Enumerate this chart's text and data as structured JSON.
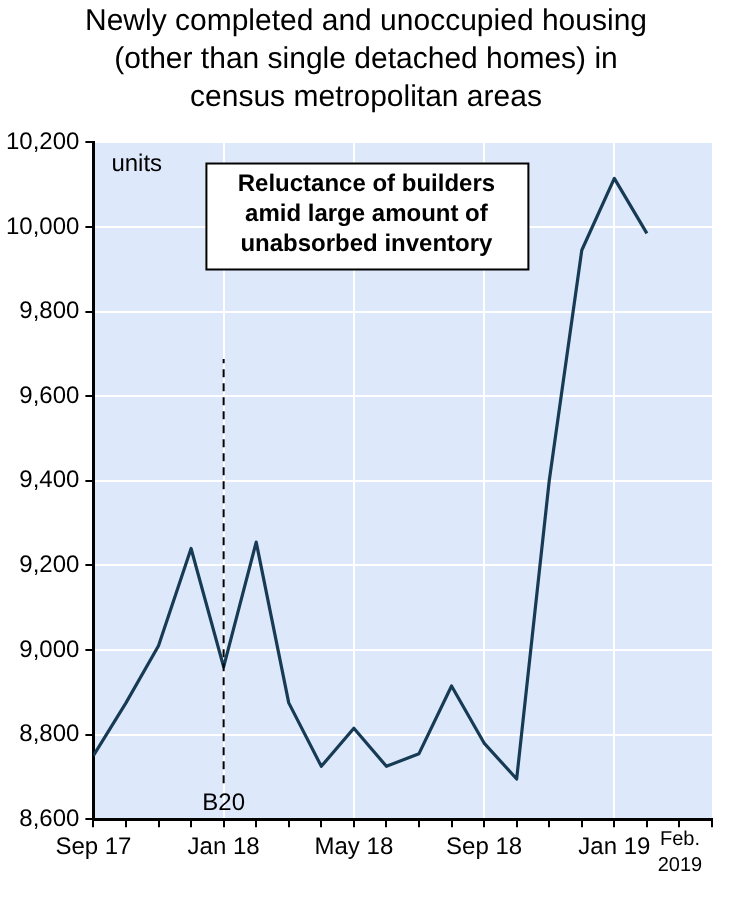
{
  "chart_data": {
    "type": "line",
    "title": "Newly completed and unoccupied housing (other than single detached homes) in census metropolitan areas",
    "x": [
      "2017-09",
      "2017-10",
      "2017-11",
      "2017-12",
      "2018-01",
      "2018-02",
      "2018-03",
      "2018-04",
      "2018-05",
      "2018-06",
      "2018-07",
      "2018-08",
      "2018-09",
      "2018-10",
      "2018-11",
      "2018-12",
      "2019-01",
      "2019-02"
    ],
    "series": [
      {
        "color": "#173a55",
        "values": [
          8750,
          8875,
          9010,
          9240,
          8960,
          9255,
          8875,
          8725,
          8815,
          8725,
          8755,
          8915,
          8780,
          8695,
          9400,
          9945,
          10115,
          9985
        ]
      }
    ],
    "xlim": [
      "2017-09",
      "2019-04"
    ],
    "xticks": [
      {
        "value": "2017-09",
        "label": "Sep 17"
      },
      {
        "value": "2017-10",
        "label": null
      },
      {
        "value": "2017-11",
        "label": null
      },
      {
        "value": "2017-12",
        "label": null
      },
      {
        "value": "2018-01",
        "label": "Jan 18"
      },
      {
        "value": "2018-02",
        "label": null
      },
      {
        "value": "2018-03",
        "label": null
      },
      {
        "value": "2018-04",
        "label": null
      },
      {
        "value": "2018-05",
        "label": "May 18"
      },
      {
        "value": "2018-06",
        "label": null
      },
      {
        "value": "2018-07",
        "label": null
      },
      {
        "value": "2018-08",
        "label": null
      },
      {
        "value": "2018-09",
        "label": "Sep 18"
      },
      {
        "value": "2018-10",
        "label": null
      },
      {
        "value": "2018-11",
        "label": null
      },
      {
        "value": "2018-12",
        "label": null
      },
      {
        "value": "2019-01",
        "label": "Jan 19"
      },
      {
        "value": "2019-02",
        "label": null
      },
      {
        "value": "2019-03",
        "label": null
      },
      {
        "value": "2019-04",
        "label": null
      }
    ],
    "ylim": [
      8600,
      10200
    ],
    "yticks": [
      {
        "value": 8600,
        "label": "8,600"
      },
      {
        "value": 8800,
        "label": "8,800"
      },
      {
        "value": 9000,
        "label": "9,000"
      },
      {
        "value": 9200,
        "label": "9,200"
      },
      {
        "value": 9400,
        "label": "9,400"
      },
      {
        "value": 9600,
        "label": "9,600"
      },
      {
        "value": 9800,
        "label": "9,800"
      },
      {
        "value": 10000,
        "label": "10,000"
      },
      {
        "value": 10200,
        "label": "10,200"
      }
    ],
    "grid": true,
    "legend": false,
    "marker": "none",
    "line_style": "solid",
    "ref_lines": [
      {
        "axis": "x",
        "value": "2018-01",
        "label": "B20",
        "line_style": "dashed",
        "color": "#000000"
      }
    ],
    "annotations": [
      "units",
      "Reluctance of builders amid large amount of unabsorbed inventory",
      "Feb. 2019"
    ]
  }
}
